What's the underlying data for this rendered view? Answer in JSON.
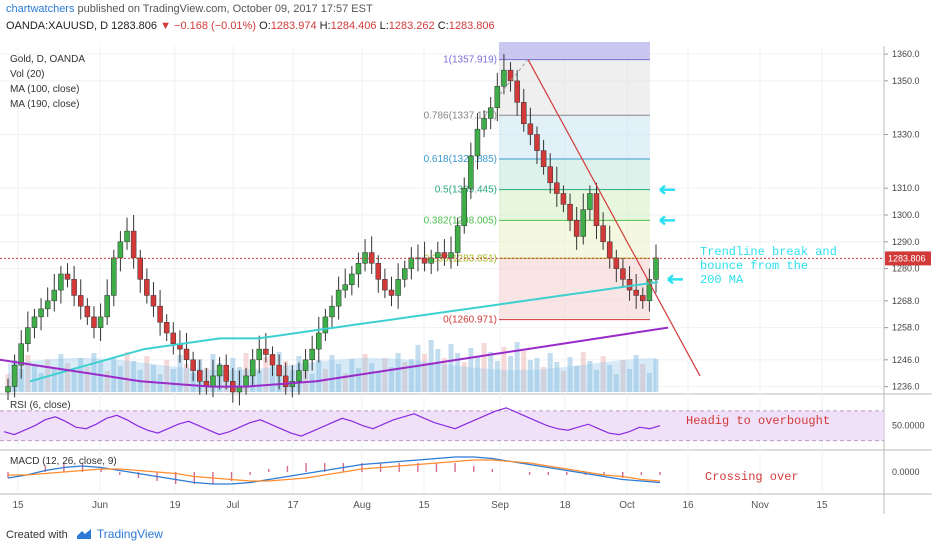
{
  "header": {
    "author": "chartwatchers",
    "published_text": "published on TradingView.com, October 09, 2017 17:57 EST",
    "symbol": "OANDA:XAUUSD, D",
    "last": "1283.806",
    "arrow": "▼",
    "change": "−0.168 (−0.01%)",
    "o_label": "O:",
    "o_value": "1283.974",
    "h_label": "H:",
    "h_value": "1284.406",
    "l_label": "L:",
    "l_value": "1283.262",
    "c_label": "C:",
    "c_value": "1283.806"
  },
  "legend": {
    "title": "Gold, D, OANDA",
    "vol": "Vol (20)",
    "ma100": "MA (100, close)",
    "ma190": "MA (190, close)"
  },
  "colors": {
    "bull": "#3fae49",
    "bear": "#d23a3a",
    "ma100": "#3ed0d0",
    "ma190": "#9b2bc9",
    "trendline": "#d23a3a",
    "annotation": "#2ee0f0",
    "rsi": "#8a2be2",
    "macd_line": "#2a7ad6",
    "signal_line": "#ff8c2e"
  },
  "chart_data": {
    "type": "candlestick",
    "x_axis_ticks": [
      "15",
      "Jun",
      "19",
      "Jul",
      "17",
      "Aug",
      "15",
      "Sep",
      "18",
      "Oct",
      "16",
      "Nov",
      "15"
    ],
    "price_ticks": [
      1360.0,
      1350.0,
      1330.0,
      1310.0,
      1300.0,
      1290.0,
      1280.0,
      1268.0,
      1258.0,
      1246.0,
      1236.0
    ],
    "ylim": [
      1234,
      1363
    ],
    "current_price": "1283.806",
    "last_price_value": 1283.806,
    "closes": [
      1236,
      1244,
      1252,
      1258,
      1262,
      1265,
      1268,
      1272,
      1278,
      1276,
      1270,
      1266,
      1262,
      1258,
      1262,
      1270,
      1284,
      1290,
      1294,
      1284,
      1276,
      1270,
      1266,
      1260,
      1256,
      1252,
      1250,
      1246,
      1242,
      1238,
      1236,
      1240,
      1244,
      1238,
      1234,
      1236,
      1240,
      1246,
      1250,
      1248,
      1244,
      1240,
      1236,
      1238,
      1242,
      1246,
      1250,
      1256,
      1262,
      1266,
      1272,
      1274,
      1278,
      1282,
      1286,
      1282,
      1276,
      1272,
      1270,
      1276,
      1280,
      1284,
      1284,
      1282,
      1284,
      1286,
      1284,
      1286,
      1296,
      1310,
      1322,
      1332,
      1336,
      1340,
      1348,
      1354,
      1350,
      1342,
      1334,
      1330,
      1324,
      1318,
      1312,
      1308,
      1304,
      1298,
      1292,
      1302,
      1308,
      1296,
      1290,
      1284,
      1280,
      1276,
      1272,
      1270,
      1268,
      1276,
      1284
    ],
    "ma100": [
      1238,
      1240,
      1242,
      1244,
      1246,
      1248,
      1250,
      1251,
      1252,
      1253,
      1254,
      1254,
      1254,
      1255,
      1256,
      1257,
      1258,
      1259,
      1260,
      1261,
      1262,
      1263,
      1264,
      1265,
      1266,
      1267,
      1268,
      1269,
      1270,
      1271,
      1272,
      1273,
      1274,
      1275
    ],
    "ma190": [
      1246,
      1244,
      1242,
      1240,
      1238,
      1237,
      1236,
      1236,
      1237,
      1238,
      1240,
      1242,
      1244,
      1246,
      1248,
      1250,
      1252,
      1254,
      1256,
      1258
    ],
    "fibonacci": [
      {
        "level": "1",
        "price": 1357.919,
        "label": "1(1357.919)"
      },
      {
        "level": "0.786",
        "price": 1337.172,
        "label": "0.786(1337.172)"
      },
      {
        "level": "0.618",
        "price": 1320.885,
        "label": "0.618(1320.885)"
      },
      {
        "level": "0.5",
        "price": 1309.445,
        "label": "0.5(1309.445)"
      },
      {
        "level": "0.382",
        "price": 1298.005,
        "label": "0.382(1298.005)"
      },
      {
        "level": "0.236",
        "price": 1283.851,
        "label": "0.236(1283.851)"
      },
      {
        "level": "0",
        "price": 1260.971,
        "label": "0(1260.971)"
      }
    ],
    "annotations": {
      "trendline_note": "Trendline break and bounce from the 200 MA",
      "rsi_note": "Headig to overbought",
      "macd_note": "Crossing over"
    },
    "rsi": {
      "label": "RSI (6, close)",
      "tick": "50.0000",
      "values": [
        42,
        38,
        44,
        50,
        58,
        62,
        56,
        48,
        46,
        52,
        60,
        64,
        58,
        50,
        44,
        40,
        46,
        52,
        56,
        50,
        44,
        38,
        42,
        48,
        54,
        58,
        52,
        46,
        40,
        36,
        42,
        48,
        54,
        60,
        56,
        50,
        46,
        52,
        58,
        62,
        66,
        60,
        54,
        50,
        46,
        52,
        58,
        64,
        70,
        74,
        68,
        62,
        56,
        50,
        46,
        44,
        48,
        52,
        46,
        40,
        38,
        42,
        48,
        46,
        50
      ]
    },
    "macd": {
      "label": "MACD (12, 26, close, 9)",
      "tick": "0.0000",
      "macd_values": [
        -4,
        -2,
        1,
        3,
        4,
        3,
        1,
        -1,
        -3,
        -5,
        -7,
        -8,
        -8,
        -7,
        -5,
        -3,
        -1,
        1,
        3,
        5,
        6,
        7,
        8,
        9,
        10,
        10,
        9,
        7,
        5,
        3,
        1,
        -1,
        -3,
        -5,
        -6,
        -7
      ],
      "signal_values": [
        -2,
        -2,
        -1,
        0,
        1,
        2,
        2,
        1,
        0,
        -1,
        -3,
        -4,
        -5,
        -6,
        -6,
        -5,
        -4,
        -2,
        0,
        2,
        3,
        4,
        5,
        6,
        7,
        8,
        8,
        7,
        6,
        4,
        2,
        0,
        -2,
        -3,
        -5,
        -6
      ]
    }
  },
  "footer": {
    "created_with": "Created with",
    "brand": "TradingView"
  }
}
